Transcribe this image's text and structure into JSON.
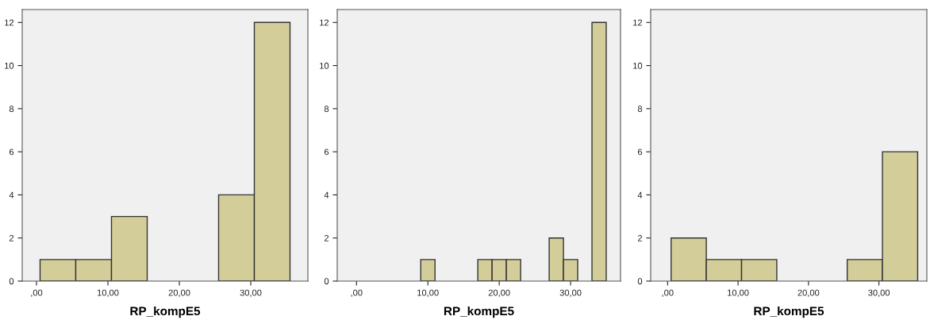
{
  "chart_data": [
    {
      "type": "histogram",
      "xlabel": "RP_kompE5",
      "bins": [
        0.5,
        5.5,
        10.5,
        15.5,
        20.5,
        25.5,
        30.5,
        35.5
      ],
      "values": [
        1,
        1,
        3,
        0,
        0,
        4,
        12
      ],
      "color": "#d3ce99",
      "xlim": [
        -2,
        38
      ],
      "xticks": [
        {
          "value": 0,
          "label": ",00"
        },
        {
          "value": 10,
          "label": "10,00"
        },
        {
          "value": 20,
          "label": "20,00"
        },
        {
          "value": 30,
          "label": "30,00"
        }
      ],
      "ylim": [
        0,
        12.6
      ],
      "yticks": [
        0,
        2,
        4,
        6,
        8,
        10,
        12
      ],
      "grid": false,
      "legend": false
    },
    {
      "type": "histogram",
      "xlabel": "RP_kompE5",
      "bins": [
        9,
        11,
        13,
        15,
        17,
        19,
        21,
        23,
        25,
        27,
        29,
        31,
        33,
        35
      ],
      "values": [
        1,
        0,
        0,
        0,
        1,
        1,
        1,
        0,
        0,
        2,
        1,
        0,
        12
      ],
      "color": "#d3ce99",
      "xlim": [
        -2.7,
        37
      ],
      "xticks": [
        {
          "value": 0,
          "label": ",00"
        },
        {
          "value": 10,
          "label": "10,00"
        },
        {
          "value": 20,
          "label": "20,00"
        },
        {
          "value": 30,
          "label": "30,00"
        }
      ],
      "ylim": [
        0,
        12.6
      ],
      "yticks": [
        0,
        2,
        4,
        6,
        8,
        10,
        12
      ],
      "grid": false,
      "legend": false
    },
    {
      "type": "histogram",
      "xlabel": "RP_kompE5",
      "bins": [
        0.5,
        5.5,
        10.5,
        15.5,
        20.5,
        25.5,
        30.5,
        35.5
      ],
      "values": [
        2,
        1,
        1,
        0,
        0,
        1,
        6
      ],
      "color": "#d3ce99",
      "xlim": [
        -2.4,
        36.8
      ],
      "xticks": [
        {
          "value": 0,
          "label": ",00"
        },
        {
          "value": 10,
          "label": "10,00"
        },
        {
          "value": 20,
          "label": "20,00"
        },
        {
          "value": 30,
          "label": "30,00"
        }
      ],
      "ylim": [
        0,
        12.6
      ],
      "yticks": [
        0,
        2,
        4,
        6,
        8,
        10,
        12
      ],
      "grid": false,
      "legend": false
    }
  ]
}
